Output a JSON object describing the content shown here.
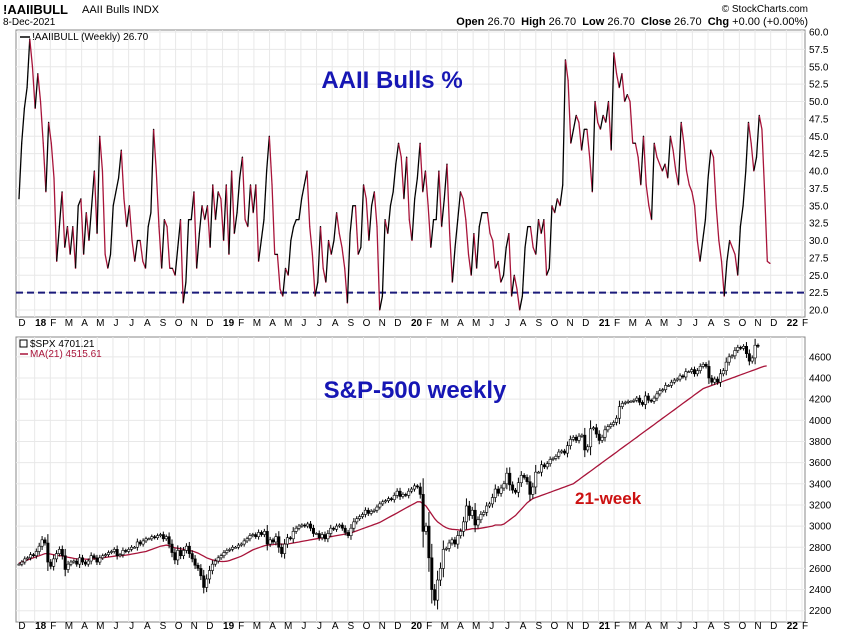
{
  "header": {
    "symbol": "!AAIIBULL",
    "description": "AAII Bulls INDX",
    "date": "8-Dec-2021",
    "credit": "© StockCharts.com",
    "open_label": "Open",
    "open": "26.70",
    "high_label": "High",
    "high": "26.70",
    "low_label": "Low",
    "low": "26.70",
    "close_label": "Close",
    "close": "26.70",
    "chg_label": "Chg",
    "chg": "+0.00 (+0.00%)"
  },
  "colors": {
    "black": "#000000",
    "crimson": "#a8143a",
    "dashed_line": "#1a1a7a",
    "big_title": "#1616b4",
    "annotation": "#cc1111",
    "grid": "#e8e8e8"
  },
  "chart_data": [
    {
      "type": "line",
      "title": "AAII Bulls %",
      "legend": "!AAIIBULL (Weekly) 26.70",
      "ylim": [
        20,
        60
      ],
      "yticks": [
        "60.0",
        "57.5",
        "55.0",
        "52.5",
        "50.0",
        "47.5",
        "45.0",
        "42.5",
        "40.0",
        "37.5",
        "35.0",
        "32.5",
        "30.0",
        "27.5",
        "25.0",
        "22.5",
        "20.0"
      ],
      "reference_line": {
        "value": 22.5,
        "style": "dashed"
      },
      "x_labels": [
        "D",
        "18",
        "F",
        "M",
        "A",
        "M",
        "J",
        "J",
        "A",
        "S",
        "O",
        "N",
        "D",
        "19",
        "F",
        "M",
        "A",
        "M",
        "J",
        "J",
        "A",
        "S",
        "O",
        "N",
        "D",
        "20",
        "F",
        "M",
        "A",
        "M",
        "J",
        "J",
        "A",
        "S",
        "O",
        "N",
        "D",
        "21",
        "F",
        "M",
        "A",
        "M",
        "J",
        "J",
        "A",
        "S",
        "O",
        "N",
        "D",
        "22",
        "F"
      ],
      "series": [
        {
          "values": [
            36,
            44,
            49,
            52,
            59,
            55,
            49,
            54,
            50,
            44,
            37,
            47,
            44,
            39,
            27,
            32,
            37,
            29,
            32,
            28,
            32,
            26,
            35,
            36,
            28,
            34,
            30,
            35,
            40,
            31,
            45,
            40,
            28,
            26,
            28,
            35,
            37,
            39,
            43,
            36,
            32,
            35,
            30,
            27,
            30,
            30,
            27,
            26,
            32,
            34,
            46,
            40,
            32,
            26,
            33,
            32,
            26,
            26,
            25,
            29,
            33,
            21,
            24,
            33,
            33,
            37,
            26,
            31,
            35,
            33,
            35,
            29,
            38,
            33,
            37,
            36,
            30,
            38,
            28,
            40,
            31,
            34,
            39,
            42,
            33,
            32,
            38,
            34,
            38,
            27,
            30,
            33,
            40,
            45,
            38,
            28,
            28,
            23,
            22,
            26,
            25,
            30,
            32,
            33,
            33,
            36,
            38,
            40,
            32,
            28,
            22,
            24,
            32,
            26,
            24,
            30,
            28,
            30,
            34,
            31,
            29,
            26,
            21,
            31,
            35,
            35,
            28,
            29,
            38,
            36,
            30,
            35,
            37,
            32,
            20,
            22,
            33,
            31,
            35,
            37,
            41,
            44,
            42,
            36,
            42,
            33,
            30,
            36,
            39,
            44,
            37,
            40,
            35,
            29,
            33,
            33,
            40,
            32,
            36,
            41,
            31,
            24,
            29,
            33,
            37,
            36,
            33,
            28,
            25,
            31,
            26,
            32,
            34,
            34,
            34,
            31,
            30,
            26,
            27,
            24,
            25,
            29,
            31,
            22,
            25,
            23,
            20,
            22,
            29,
            32,
            32,
            29,
            28,
            33,
            31,
            33,
            25,
            26,
            35,
            34,
            36,
            35,
            38,
            56,
            53,
            44,
            46,
            48,
            47,
            43,
            46,
            46,
            42,
            37,
            50,
            47,
            46,
            48,
            47,
            50,
            43,
            57,
            54,
            52,
            54,
            50,
            51,
            50,
            44,
            44,
            42,
            38,
            45,
            38,
            35,
            33,
            44,
            42,
            41,
            40,
            41,
            39,
            45,
            43,
            40,
            38,
            47,
            44,
            40,
            38,
            37,
            35,
            30,
            27,
            30,
            33,
            39,
            43,
            42,
            35,
            30,
            27,
            22,
            27,
            30,
            29,
            28,
            25,
            32,
            35,
            40,
            47,
            44,
            40,
            42,
            48,
            46,
            37,
            27,
            26.7
          ]
        }
      ]
    },
    {
      "type": "candlestick",
      "title": "S&P-500 weekly",
      "legend_price": "$SPX 4701.21",
      "legend_ma": "MA(21) 4515.61",
      "annotation": "21-week",
      "ylim": [
        2150,
        4750
      ],
      "yticks": [
        "4600",
        "4400",
        "4200",
        "4000",
        "3800",
        "3600",
        "3400",
        "3200",
        "3000",
        "2800",
        "2600",
        "2400",
        "2200"
      ],
      "x_labels": [
        "D",
        "18",
        "F",
        "M",
        "A",
        "M",
        "J",
        "J",
        "A",
        "S",
        "O",
        "N",
        "D",
        "19",
        "F",
        "M",
        "A",
        "M",
        "J",
        "J",
        "A",
        "S",
        "O",
        "N",
        "D",
        "20",
        "F",
        "M",
        "A",
        "M",
        "J",
        "J",
        "A",
        "S",
        "O",
        "N",
        "D",
        "21",
        "F",
        "M",
        "A",
        "M",
        "J",
        "J",
        "A",
        "S",
        "O",
        "N",
        "D",
        "22",
        "F"
      ],
      "series": [
        {
          "name": "$SPX",
          "values": [
            2640,
            2660,
            2690,
            2700,
            2730,
            2720,
            2760,
            2810,
            2870,
            2840,
            2660,
            2620,
            2690,
            2740,
            2780,
            2720,
            2590,
            2640,
            2660,
            2670,
            2640,
            2700,
            2660,
            2640,
            2670,
            2720,
            2700,
            2660,
            2700,
            2720,
            2730,
            2750,
            2760,
            2780,
            2720,
            2730,
            2770,
            2760,
            2780,
            2800,
            2800,
            2850,
            2830,
            2860,
            2880,
            2880,
            2900,
            2890,
            2910,
            2920,
            2880,
            2900,
            2830,
            2750,
            2680,
            2770,
            2720,
            2770,
            2810,
            2740,
            2690,
            2630,
            2600,
            2530,
            2420,
            2500,
            2580,
            2640,
            2670,
            2700,
            2720,
            2750,
            2770,
            2780,
            2800,
            2800,
            2820,
            2830,
            2860,
            2880,
            2910,
            2920,
            2900,
            2940,
            2920,
            2950,
            2830,
            2870,
            2850,
            2900,
            2800,
            2740,
            2830,
            2890,
            2880,
            2950,
            2980,
            3000,
            3010,
            3000,
            3020,
            2980,
            2930,
            2930,
            2890,
            2920,
            2880,
            2930,
            2980,
            2970,
            3000,
            3010,
            2980,
            2940,
            2910,
            2980,
            3040,
            3070,
            3090,
            3110,
            3150,
            3120,
            3140,
            3150,
            3180,
            3210,
            3230,
            3240,
            3260,
            3250,
            3290,
            3330,
            3280,
            3300,
            3290,
            3330,
            3350,
            3380,
            3370,
            3300,
            2950,
            3000,
            2700,
            2400,
            2300,
            2490,
            2600,
            2780,
            2790,
            2840,
            2870,
            2830,
            2910,
            2950,
            3040,
            3190,
            3100,
            3150,
            3010,
            3060,
            3110,
            3130,
            3190,
            3210,
            3270,
            3350,
            3310,
            3360,
            3400,
            3500,
            3390,
            3340,
            3320,
            3410,
            3480,
            3460,
            3420,
            3300,
            3370,
            3510,
            3510,
            3580,
            3560,
            3590,
            3630,
            3640,
            3660,
            3700,
            3710,
            3690,
            3760,
            3820,
            3840,
            3810,
            3850,
            3860,
            3720,
            3750,
            3920,
            3930,
            3870,
            3810,
            3840,
            3910,
            3940,
            3960,
            3980,
            4020,
            4130,
            4160,
            4170,
            4180,
            4180,
            4190,
            4210,
            4170,
            4150,
            4230,
            4190,
            4180,
            4210,
            4250,
            4280,
            4290,
            4330,
            4330,
            4360,
            4380,
            4390,
            4420,
            4410,
            4460,
            4460,
            4480,
            4440,
            4470,
            4510,
            4530,
            4510,
            4400,
            4360,
            4390,
            4360,
            4440,
            4470,
            4550,
            4600,
            4610,
            4660,
            4690,
            4680,
            4700,
            4630,
            4560,
            4590,
            4710,
            4700
          ]
        },
        {
          "name": "MA(21)",
          "values": [
            2650,
            2660,
            2670,
            2680,
            2690,
            2700,
            2710,
            2720,
            2730,
            2740,
            2740,
            2735,
            2730,
            2725,
            2720,
            2718,
            2712,
            2705,
            2700,
            2695,
            2690,
            2690,
            2690,
            2688,
            2686,
            2690,
            2692,
            2692,
            2695,
            2700,
            2705,
            2708,
            2712,
            2715,
            2718,
            2720,
            2722,
            2726,
            2730,
            2735,
            2740,
            2745,
            2750,
            2755,
            2760,
            2770,
            2780,
            2790,
            2800,
            2810,
            2815,
            2820,
            2815,
            2805,
            2795,
            2790,
            2785,
            2780,
            2775,
            2770,
            2765,
            2755,
            2745,
            2730,
            2715,
            2700,
            2690,
            2680,
            2675,
            2670,
            2665,
            2665,
            2668,
            2675,
            2685,
            2695,
            2705,
            2715,
            2730,
            2745,
            2760,
            2775,
            2785,
            2795,
            2805,
            2815,
            2820,
            2822,
            2825,
            2830,
            2832,
            2830,
            2830,
            2832,
            2835,
            2840,
            2845,
            2850,
            2855,
            2860,
            2865,
            2870,
            2875,
            2880,
            2885,
            2890,
            2892,
            2895,
            2900,
            2905,
            2910,
            2915,
            2920,
            2925,
            2930,
            2935,
            2945,
            2955,
            2965,
            2975,
            2985,
            2995,
            3005,
            3015,
            3025,
            3035,
            3050,
            3065,
            3080,
            3095,
            3110,
            3125,
            3140,
            3155,
            3170,
            3185,
            3200,
            3215,
            3230,
            3230,
            3210,
            3190,
            3150,
            3110,
            3070,
            3040,
            3020,
            3000,
            2985,
            2975,
            2970,
            2968,
            2965,
            2960,
            2960,
            2965,
            2970,
            2975,
            2975,
            2975,
            2980,
            2985,
            2990,
            2995,
            3000,
            3010,
            3010,
            3010,
            3020,
            3040,
            3060,
            3080,
            3100,
            3130,
            3160,
            3190,
            3220,
            3240,
            3260,
            3270,
            3280,
            3290,
            3300,
            3310,
            3320,
            3330,
            3340,
            3350,
            3360,
            3370,
            3380,
            3390,
            3400,
            3420,
            3440,
            3460,
            3480,
            3500,
            3520,
            3540,
            3560,
            3580,
            3600,
            3620,
            3640,
            3660,
            3680,
            3700,
            3720,
            3740,
            3760,
            3780,
            3800,
            3820,
            3840,
            3860,
            3880,
            3900,
            3920,
            3940,
            3960,
            3980,
            4000,
            4020,
            4040,
            4060,
            4080,
            4100,
            4120,
            4140,
            4160,
            4180,
            4200,
            4220,
            4240,
            4260,
            4280,
            4300,
            4310,
            4320,
            4330,
            4340,
            4350,
            4360,
            4370,
            4380,
            4390,
            4400,
            4410,
            4420,
            4430,
            4440,
            4450,
            4460,
            4470,
            4480,
            4490,
            4500,
            4510,
            4515
          ]
        }
      ]
    }
  ]
}
